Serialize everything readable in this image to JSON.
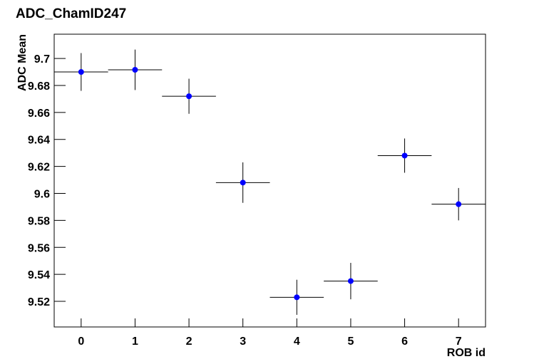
{
  "chart_data": {
    "type": "scatter",
    "title": "ADC_ChamID247",
    "x_label": "ROB id",
    "y_label": "ADC Mean",
    "x": [
      0,
      1,
      2,
      3,
      4,
      5,
      6,
      7
    ],
    "xerrors": [
      0.5,
      0.5,
      0.5,
      0.5,
      0.5,
      0.5,
      0.5,
      0.5
    ],
    "values": [
      9.69,
      9.6916,
      9.672,
      9.608,
      9.523,
      9.535,
      9.628,
      9.592
    ],
    "errors": [
      0.014,
      0.015,
      0.013,
      0.015,
      0.013,
      0.0135,
      0.0127,
      0.012
    ],
    "color": "#0000ff",
    "xlim": [
      -0.5,
      7.5
    ],
    "xticks": [
      0,
      1,
      2,
      3,
      4,
      5,
      6,
      7
    ],
    "ylim": [
      9.501,
      9.718
    ],
    "yticks": [
      9.52,
      9.54,
      9.56,
      9.58,
      9.6,
      9.62,
      9.64,
      9.66,
      9.68,
      9.7
    ]
  }
}
